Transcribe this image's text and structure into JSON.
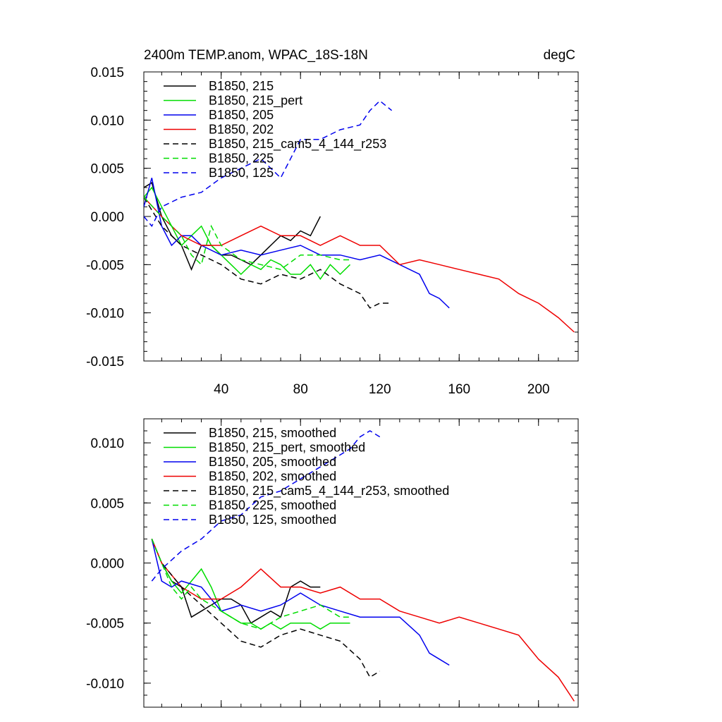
{
  "chart_data": [
    {
      "type": "line",
      "title": "2400m TEMP.anom, WPAC_18S-18N",
      "units": "degC",
      "xlabel": "",
      "ylabel": "",
      "xlim": [
        1,
        220
      ],
      "ylim": [
        -0.015,
        0.015
      ],
      "x_ticks": [
        40,
        80,
        120,
        160,
        200
      ],
      "y_ticks": [
        "0.015",
        "0.010",
        "0.005",
        "0.000",
        "-0.005",
        "-0.010",
        "-0.015"
      ],
      "y_tick_values": [
        0.015,
        0.01,
        0.005,
        0.0,
        -0.005,
        -0.01,
        -0.015
      ],
      "legend_position": "top-left",
      "grid": false,
      "series": [
        {
          "name": "B1850, 215",
          "color": "#000000",
          "dash": false,
          "x": [
            1,
            5,
            10,
            15,
            20,
            25,
            30,
            35,
            40,
            45,
            50,
            55,
            60,
            65,
            70,
            75,
            80,
            85,
            90
          ],
          "y": [
            0.003,
            0.0035,
            0.0,
            -0.002,
            -0.003,
            -0.0055,
            -0.003,
            -0.003,
            -0.004,
            -0.004,
            -0.0045,
            -0.005,
            -0.004,
            -0.003,
            -0.002,
            -0.0025,
            -0.0015,
            -0.002,
            0.0
          ]
        },
        {
          "name": "B1850, 215_pert",
          "color": "#00dd00",
          "dash": false,
          "x": [
            1,
            5,
            10,
            15,
            20,
            25,
            30,
            35,
            40,
            45,
            50,
            55,
            60,
            65,
            70,
            75,
            80,
            85,
            90,
            95,
            100,
            105
          ],
          "y": [
            0.002,
            0.003,
            0.001,
            -0.001,
            -0.003,
            -0.002,
            -0.001,
            -0.003,
            -0.004,
            -0.005,
            -0.006,
            -0.005,
            -0.0055,
            -0.0045,
            -0.005,
            -0.006,
            -0.006,
            -0.005,
            -0.0065,
            -0.005,
            -0.006,
            -0.005
          ]
        },
        {
          "name": "B1850, 205",
          "color": "#0000ee",
          "dash": false,
          "x": [
            1,
            5,
            10,
            15,
            20,
            25,
            30,
            40,
            50,
            60,
            70,
            80,
            90,
            100,
            110,
            120,
            130,
            140,
            145,
            150,
            155
          ],
          "y": [
            0.001,
            0.004,
            -0.001,
            -0.003,
            -0.002,
            -0.002,
            -0.003,
            -0.004,
            -0.0035,
            -0.004,
            -0.0035,
            -0.003,
            -0.004,
            -0.004,
            -0.0045,
            -0.004,
            -0.005,
            -0.006,
            -0.008,
            -0.0085,
            -0.0095
          ]
        },
        {
          "name": "B1850, 202",
          "color": "#ee0000",
          "dash": false,
          "x": [
            1,
            10,
            20,
            30,
            40,
            50,
            60,
            70,
            80,
            90,
            100,
            110,
            120,
            130,
            140,
            150,
            160,
            170,
            180,
            190,
            200,
            210,
            218
          ],
          "y": [
            0.002,
            0.0,
            -0.002,
            -0.003,
            -0.003,
            -0.002,
            -0.001,
            -0.002,
            -0.002,
            -0.003,
            -0.002,
            -0.003,
            -0.003,
            -0.005,
            -0.0045,
            -0.005,
            -0.0055,
            -0.006,
            -0.0065,
            -0.008,
            -0.009,
            -0.0105,
            -0.012
          ]
        },
        {
          "name": "B1850, 215_cam5_4_144_r253",
          "color": "#000000",
          "dash": true,
          "x": [
            1,
            10,
            20,
            30,
            40,
            50,
            60,
            70,
            80,
            90,
            100,
            110,
            115,
            120,
            126
          ],
          "y": [
            0.002,
            -0.001,
            -0.003,
            -0.004,
            -0.005,
            -0.0065,
            -0.007,
            -0.006,
            -0.0065,
            -0.0055,
            -0.007,
            -0.008,
            -0.0095,
            -0.009,
            -0.009
          ]
        },
        {
          "name": "B1850, 225",
          "color": "#00dd00",
          "dash": true,
          "x": [
            1,
            10,
            20,
            25,
            30,
            35,
            40,
            50,
            60,
            70,
            80,
            90,
            100,
            105
          ],
          "y": [
            0.002,
            0.0,
            -0.002,
            -0.004,
            -0.005,
            -0.001,
            -0.003,
            -0.0045,
            -0.005,
            -0.0055,
            -0.004,
            -0.004,
            -0.0045,
            -0.0045
          ]
        },
        {
          "name": "B1850, 125",
          "color": "#0000ee",
          "dash": true,
          "x": [
            1,
            5,
            10,
            20,
            30,
            40,
            50,
            60,
            70,
            80,
            90,
            100,
            110,
            115,
            120,
            126
          ],
          "y": [
            0.0,
            -0.001,
            0.001,
            0.002,
            0.0025,
            0.004,
            0.005,
            0.006,
            0.004,
            0.008,
            0.008,
            0.009,
            0.0095,
            0.011,
            0.012,
            0.011
          ]
        }
      ]
    },
    {
      "type": "line",
      "title": "",
      "xlabel": "",
      "ylabel": "",
      "xlim": [
        1,
        220
      ],
      "ylim": [
        -0.012,
        0.012
      ],
      "x_ticks": [
        40,
        80,
        120,
        160,
        200
      ],
      "y_ticks": [
        "0.010",
        "0.005",
        "0.000",
        "-0.005",
        "-0.010"
      ],
      "y_tick_values": [
        0.01,
        0.005,
        0.0,
        -0.005,
        -0.01
      ],
      "legend_position": "top-left",
      "grid": false,
      "series": [
        {
          "name": "B1850, 215, smoothed",
          "color": "#000000",
          "dash": false,
          "x": [
            5,
            10,
            15,
            20,
            25,
            30,
            35,
            40,
            45,
            50,
            55,
            60,
            65,
            70,
            75,
            80,
            85,
            90
          ],
          "y": [
            0.002,
            0.0,
            -0.0015,
            -0.002,
            -0.0045,
            -0.004,
            -0.0035,
            -0.003,
            -0.003,
            -0.0035,
            -0.005,
            -0.0045,
            -0.004,
            -0.0045,
            -0.002,
            -0.0015,
            -0.002,
            -0.002
          ]
        },
        {
          "name": "B1850, 215_pert, smoothed",
          "color": "#00dd00",
          "dash": false,
          "x": [
            5,
            10,
            15,
            20,
            25,
            30,
            35,
            40,
            45,
            50,
            55,
            60,
            65,
            70,
            75,
            80,
            85,
            90,
            95,
            100,
            105
          ],
          "y": [
            0.002,
            0.0,
            -0.0015,
            -0.0025,
            -0.0015,
            -0.0005,
            -0.002,
            -0.004,
            -0.0045,
            -0.005,
            -0.005,
            -0.0055,
            -0.005,
            -0.0055,
            -0.005,
            -0.005,
            -0.005,
            -0.0055,
            -0.005,
            -0.005,
            -0.005
          ]
        },
        {
          "name": "B1850, 205, smoothed",
          "color": "#0000ee",
          "dash": false,
          "x": [
            5,
            10,
            15,
            20,
            30,
            40,
            50,
            60,
            70,
            80,
            90,
            100,
            110,
            120,
            130,
            140,
            145,
            150,
            155
          ],
          "y": [
            0.002,
            -0.0015,
            -0.002,
            -0.0015,
            -0.002,
            -0.004,
            -0.0035,
            -0.004,
            -0.0035,
            -0.0025,
            -0.0035,
            -0.004,
            -0.0045,
            -0.0045,
            -0.0045,
            -0.006,
            -0.0075,
            -0.008,
            -0.0085
          ]
        },
        {
          "name": "B1850, 202, smoothed",
          "color": "#ee0000",
          "dash": false,
          "x": [
            5,
            10,
            20,
            30,
            40,
            50,
            60,
            70,
            80,
            90,
            100,
            110,
            120,
            130,
            140,
            150,
            160,
            170,
            180,
            190,
            200,
            210,
            218
          ],
          "y": [
            0.002,
            0.0,
            -0.002,
            -0.003,
            -0.003,
            -0.002,
            -0.0005,
            -0.002,
            -0.002,
            -0.0025,
            -0.002,
            -0.003,
            -0.003,
            -0.004,
            -0.0045,
            -0.005,
            -0.0045,
            -0.005,
            -0.0055,
            -0.006,
            -0.008,
            -0.0095,
            -0.0115
          ]
        },
        {
          "name": "B1850, 215_cam5_4_144_r253, smoothed",
          "color": "#000000",
          "dash": true,
          "x": [
            5,
            10,
            20,
            30,
            40,
            50,
            60,
            70,
            80,
            90,
            100,
            110,
            115,
            120
          ],
          "y": [
            0.002,
            0.0,
            -0.002,
            -0.0035,
            -0.005,
            -0.0065,
            -0.007,
            -0.006,
            -0.0055,
            -0.006,
            -0.0065,
            -0.008,
            -0.0095,
            -0.009
          ]
        },
        {
          "name": "B1850, 225, smoothed",
          "color": "#00dd00",
          "dash": true,
          "x": [
            5,
            10,
            15,
            20,
            25,
            30,
            35,
            40,
            50,
            60,
            70,
            80,
            90,
            100,
            105
          ],
          "y": [
            0.002,
            0.0,
            -0.002,
            -0.003,
            -0.002,
            -0.003,
            -0.0035,
            -0.004,
            -0.005,
            -0.0055,
            -0.0045,
            -0.004,
            -0.0035,
            -0.0045,
            -0.0045
          ]
        },
        {
          "name": "B1850, 125, smoothed",
          "color": "#0000ee",
          "dash": true,
          "x": [
            5,
            10,
            20,
            30,
            40,
            50,
            60,
            70,
            80,
            90,
            100,
            105,
            110,
            115,
            120
          ],
          "y": [
            -0.0015,
            -0.0005,
            0.001,
            0.002,
            0.0035,
            0.004,
            0.0055,
            0.006,
            0.007,
            0.008,
            0.009,
            0.0095,
            0.0105,
            0.011,
            0.0105
          ]
        }
      ]
    }
  ]
}
